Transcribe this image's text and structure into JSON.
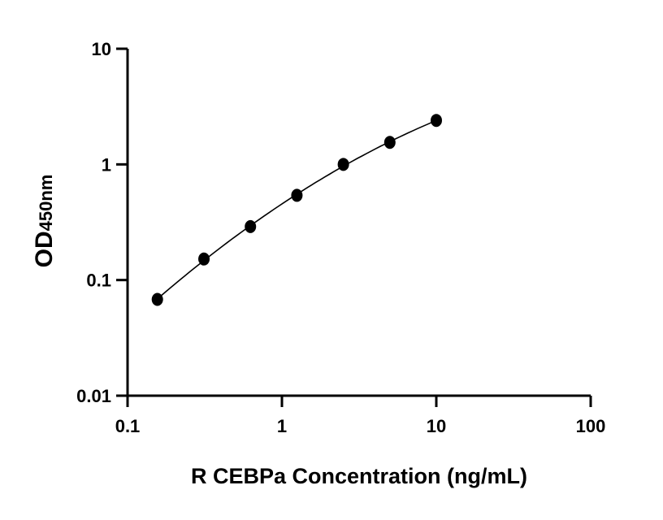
{
  "chart_data": {
    "type": "scatter",
    "title": "",
    "xlabel": "R CEBPa Concentration (ng/mL)",
    "ylabel_main": "OD",
    "ylabel_sub": "450nm",
    "x_scale": "log",
    "y_scale": "log",
    "xlim": [
      0.1,
      100
    ],
    "ylim": [
      0.01,
      10
    ],
    "x_ticks": [
      "0.1",
      "1",
      "10",
      "100"
    ],
    "y_ticks": [
      "0.01",
      "0.1",
      "1",
      "10"
    ],
    "grid": false,
    "fit_curve": true,
    "series": [
      {
        "x": [
          0.156,
          0.3125,
          0.625,
          1.25,
          2.5,
          5,
          10
        ],
        "y": [
          0.068,
          0.152,
          0.29,
          0.54,
          1.0,
          1.55,
          2.4
        ]
      }
    ],
    "colors": {
      "marker": "#000000",
      "line": "#000000"
    }
  }
}
